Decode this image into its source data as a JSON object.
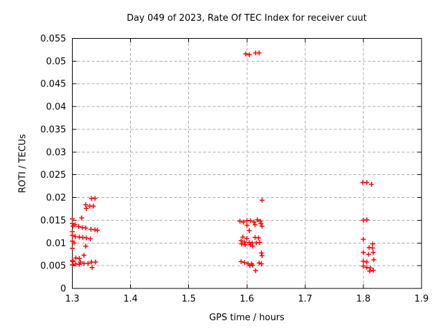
{
  "title": "Day 049 of 2023, Rate Of TEC Index for receiver cuut",
  "chart_data": {
    "type": "scatter",
    "title": "Day 049 of 2023, Rate Of TEC Index for receiver cuut",
    "xlabel": "GPS time / hours",
    "ylabel": "ROTI / TECUs",
    "xlim": [
      1.3,
      1.9
    ],
    "ylim": [
      0,
      0.055
    ],
    "xtick_values": [
      1.3,
      1.4,
      1.5,
      1.6,
      1.7,
      1.8,
      1.9
    ],
    "xtick_labels": [
      "1.3",
      "1.4",
      "1.5",
      "1.6",
      "1.7",
      "1.8",
      "1.9"
    ],
    "ytick_values": [
      0,
      0.005,
      0.01,
      0.015,
      0.02,
      0.025,
      0.03,
      0.035,
      0.04,
      0.045,
      0.05,
      0.055
    ],
    "ytick_labels": [
      "0",
      "0.005",
      "0.01",
      "0.015",
      "0.02",
      "0.025",
      "0.03",
      "0.035",
      "0.04",
      "0.045",
      "0.05",
      "0.055"
    ],
    "grid": true,
    "legend_position": "none",
    "marker": {
      "shape": "plus",
      "color": "#ff0000",
      "size": 7
    },
    "grid_color": "#a8a8a8",
    "axis_color": "#000000",
    "series": [
      {
        "name": "ROTI",
        "points": [
          [
            1.333,
            0.0198
          ],
          [
            1.339,
            0.0198
          ],
          [
            1.323,
            0.0184
          ],
          [
            1.33,
            0.0181
          ],
          [
            1.336,
            0.0181
          ],
          [
            1.324,
            0.0176
          ],
          [
            1.316,
            0.0155
          ],
          [
            1.3,
            0.0153
          ],
          [
            1.3,
            0.0143
          ],
          [
            1.305,
            0.014
          ],
          [
            1.301,
            0.0137
          ],
          [
            1.311,
            0.0136
          ],
          [
            1.317,
            0.0134
          ],
          [
            1.323,
            0.0133
          ],
          [
            1.332,
            0.013
          ],
          [
            1.339,
            0.0129
          ],
          [
            1.343,
            0.0128
          ],
          [
            1.3,
            0.0125
          ],
          [
            1.3,
            0.0117
          ],
          [
            1.305,
            0.0114
          ],
          [
            1.312,
            0.0113
          ],
          [
            1.318,
            0.0112
          ],
          [
            1.324,
            0.0111
          ],
          [
            1.331,
            0.0109
          ],
          [
            1.3,
            0.0104
          ],
          [
            1.303,
            0.01
          ],
          [
            1.323,
            0.0093
          ],
          [
            1.3,
            0.0088
          ],
          [
            1.32,
            0.0073
          ],
          [
            1.306,
            0.0067
          ],
          [
            1.312,
            0.0066
          ],
          [
            1.3,
            0.0061
          ],
          [
            1.301,
            0.0059
          ],
          [
            1.314,
            0.0058
          ],
          [
            1.32,
            0.0055
          ],
          [
            1.327,
            0.0055
          ],
          [
            1.333,
            0.0058
          ],
          [
            1.34,
            0.0058
          ],
          [
            1.306,
            0.0054
          ],
          [
            1.312,
            0.0053
          ],
          [
            1.3,
            0.0052
          ],
          [
            1.334,
            0.0046
          ],
          [
            1.598,
            0.0516
          ],
          [
            1.604,
            0.0514
          ],
          [
            1.615,
            0.0518
          ],
          [
            1.621,
            0.0518
          ],
          [
            1.626,
            0.0194
          ],
          [
            1.588,
            0.0148
          ],
          [
            1.594,
            0.0146
          ],
          [
            1.6,
            0.0149
          ],
          [
            1.606,
            0.0149
          ],
          [
            1.612,
            0.0146
          ],
          [
            1.618,
            0.0151
          ],
          [
            1.623,
            0.0148
          ],
          [
            1.624,
            0.0143
          ],
          [
            1.6,
            0.0139
          ],
          [
            1.614,
            0.014
          ],
          [
            1.626,
            0.0137
          ],
          [
            1.604,
            0.0127
          ],
          [
            1.593,
            0.0113
          ],
          [
            1.6,
            0.011
          ],
          [
            1.614,
            0.0112
          ],
          [
            1.62,
            0.0111
          ],
          [
            1.59,
            0.0105
          ],
          [
            1.596,
            0.0102
          ],
          [
            1.604,
            0.0101
          ],
          [
            1.609,
            0.01
          ],
          [
            1.616,
            0.01
          ],
          [
            1.622,
            0.0101
          ],
          [
            1.591,
            0.0098
          ],
          [
            1.597,
            0.0096
          ],
          [
            1.606,
            0.0096
          ],
          [
            1.61,
            0.0093
          ],
          [
            1.625,
            0.0078
          ],
          [
            1.626,
            0.0072
          ],
          [
            1.59,
            0.0059
          ],
          [
            1.596,
            0.0057
          ],
          [
            1.621,
            0.0056
          ],
          [
            1.625,
            0.0054
          ],
          [
            1.602,
            0.0054
          ],
          [
            1.608,
            0.0054
          ],
          [
            1.605,
            0.005
          ],
          [
            1.61,
            0.0051
          ],
          [
            1.615,
            0.0039
          ],
          [
            1.799,
            0.0233
          ],
          [
            1.806,
            0.0233
          ],
          [
            1.814,
            0.0229
          ],
          [
            1.8,
            0.015
          ],
          [
            1.806,
            0.0151
          ],
          [
            1.8,
            0.0108
          ],
          [
            1.816,
            0.0098
          ],
          [
            1.81,
            0.009
          ],
          [
            1.816,
            0.0089
          ],
          [
            1.8,
            0.0079
          ],
          [
            1.809,
            0.0075
          ],
          [
            1.817,
            0.0079
          ],
          [
            1.818,
            0.0063
          ],
          [
            1.8,
            0.006
          ],
          [
            1.806,
            0.0058
          ],
          [
            1.8,
            0.0049
          ],
          [
            1.806,
            0.0046
          ],
          [
            1.812,
            0.0045
          ],
          [
            1.811,
            0.0038
          ],
          [
            1.817,
            0.004
          ]
        ]
      }
    ]
  }
}
